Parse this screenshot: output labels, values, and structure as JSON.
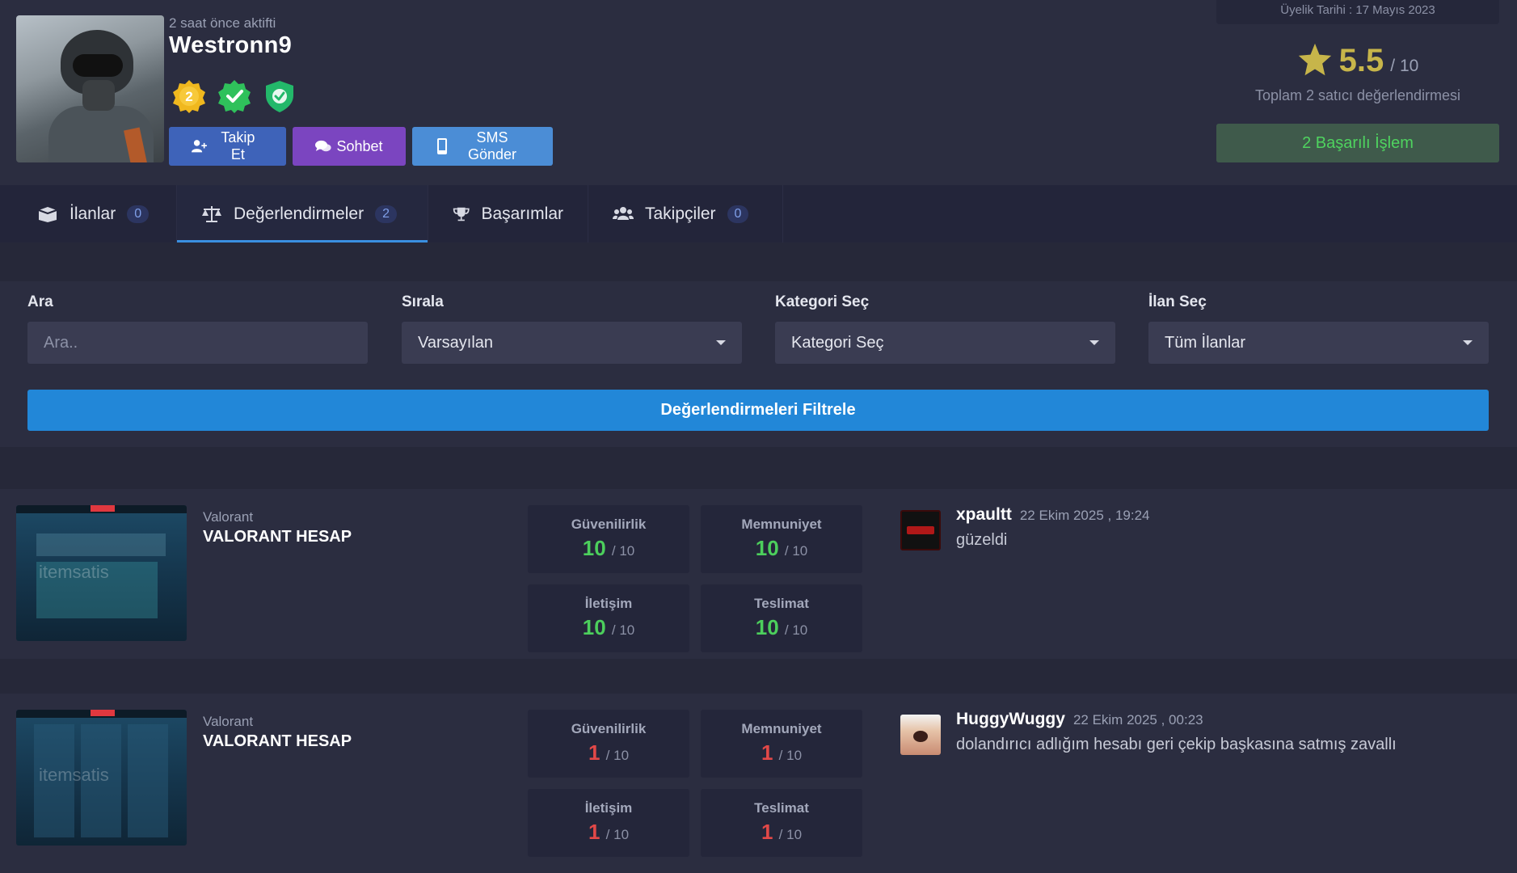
{
  "profile": {
    "last_active": "2 saat önce aktifti",
    "username": "Westronn9",
    "level_badge": "2",
    "buttons": {
      "follow": "Takip Et",
      "chat": "Sohbet",
      "sms": "SMS Gönder"
    },
    "member_since": "Üyelik Tarihi : 17 Mayıs 2023",
    "score": "5.5",
    "score_max": "/ 10",
    "rating_count": "Toplam 2 satıcı değerlendirmesi",
    "success": "2 Başarılı İşlem"
  },
  "tabs": [
    {
      "label": "İlanlar",
      "count": "0",
      "icon": "box-icon"
    },
    {
      "label": "Değerlendirmeler",
      "count": "2",
      "icon": "scale-icon"
    },
    {
      "label": "Başarımlar",
      "count": "",
      "icon": "trophy-icon"
    },
    {
      "label": "Takipçiler",
      "count": "0",
      "icon": "users-icon"
    }
  ],
  "filter": {
    "search_label": "Ara",
    "search_placeholder": "Ara..",
    "sort_label": "Sırala",
    "sort_value": "Varsayılan",
    "category_label": "Kategori Seç",
    "category_value": "Kategori Seç",
    "listing_label": "İlan Seç",
    "listing_value": "Tüm İlanlar",
    "submit": "Değerlendirmeleri Filtrele"
  },
  "reviews": [
    {
      "game": "Valorant",
      "listing": "VALORANT HESAP",
      "scores": [
        {
          "label": "Güvenilirlik",
          "value": "10",
          "max": "/ 10"
        },
        {
          "label": "Memnuniyet",
          "value": "10",
          "max": "/ 10"
        },
        {
          "label": "İletişim",
          "value": "10",
          "max": "/ 10"
        },
        {
          "label": "Teslimat",
          "value": "10",
          "max": "/ 10"
        }
      ],
      "reviewer": "xpaultt",
      "date": "22 Ekim 2025 , 19:24",
      "text": "güzeldi"
    },
    {
      "game": "Valorant",
      "listing": "VALORANT HESAP",
      "scores": [
        {
          "label": "Güvenilirlik",
          "value": "1",
          "max": "/ 10"
        },
        {
          "label": "Memnuniyet",
          "value": "1",
          "max": "/ 10"
        },
        {
          "label": "İletişim",
          "value": "1",
          "max": "/ 10"
        },
        {
          "label": "Teslimat",
          "value": "1",
          "max": "/ 10"
        }
      ],
      "reviewer": "HuggyWuggy",
      "date": "22 Ekim 2025 , 00:23",
      "text": "dolandırıcı adlığım hesabı geri çekip başkasına satmış zavallı"
    }
  ],
  "colors": {
    "accent": "#2287d8",
    "good": "#4ccf5c",
    "bad": "#e24848",
    "star": "#c7b54a"
  }
}
